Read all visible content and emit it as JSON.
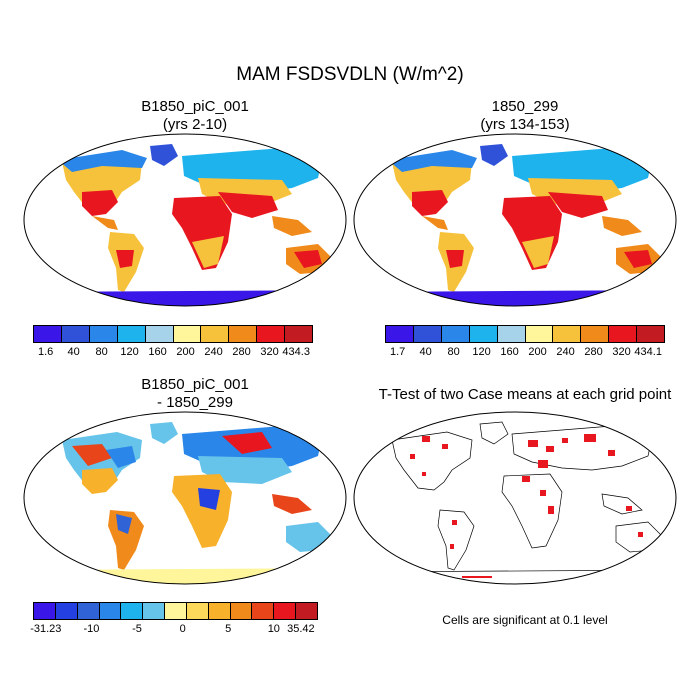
{
  "main_title": "MAM FSDSVDLN (W/m^2)",
  "panels": {
    "case1": {
      "title_line1": "B1850_piC_001",
      "title_line2": "(yrs 2-10)"
    },
    "case2": {
      "title_line1": "1850_299",
      "title_line2": "(yrs 134-153)"
    },
    "diff": {
      "title_line1": "B1850_piC_001",
      "title_line2": "- 1850_299"
    },
    "ttest": {
      "title_line1": "T-Test of two Case means at each grid point",
      "note": "Cells are significant at 0.1 level"
    }
  },
  "colorbars": {
    "case1": {
      "colors": [
        "#3a17e8",
        "#2f52d9",
        "#2a86e8",
        "#1fb3ee",
        "#a6d2ea",
        "#fff59a",
        "#f7c23b",
        "#f08a1a",
        "#e8161f",
        "#c21b22"
      ],
      "labels": [
        "1.6",
        "40",
        "80",
        "120",
        "160",
        "200",
        "240",
        "280",
        "320",
        "434.3"
      ]
    },
    "case2": {
      "colors": [
        "#3a17e8",
        "#2f52d9",
        "#2a86e8",
        "#1fb3ee",
        "#a6d2ea",
        "#fff59a",
        "#f7c23b",
        "#f08a1a",
        "#e8161f",
        "#c21b22"
      ],
      "labels": [
        "1.7",
        "40",
        "80",
        "120",
        "160",
        "200",
        "240",
        "280",
        "320",
        "434.1"
      ]
    },
    "diff": {
      "colors": [
        "#3a17e8",
        "#2540e0",
        "#2f63d6",
        "#2a86e8",
        "#1fb3ee",
        "#66c3ea",
        "#fff59a",
        "#fcd95a",
        "#f7b12b",
        "#f08a1a",
        "#e8461a",
        "#e8161f",
        "#c21b22"
      ],
      "labels": [
        "-31.23",
        "-10",
        "-5",
        "0",
        "5",
        "10",
        "35.42"
      ]
    }
  }
}
